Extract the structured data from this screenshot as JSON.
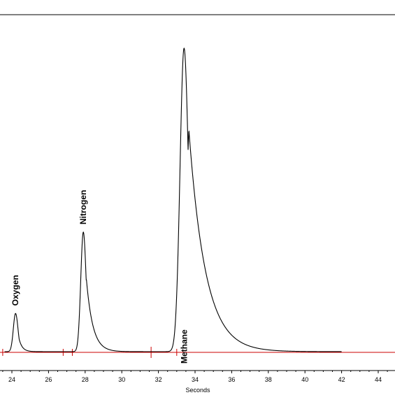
{
  "chart_data": {
    "type": "line",
    "title": "",
    "xlabel": "Seconds",
    "ylabel": "",
    "xlim": [
      23.5,
      45
    ],
    "ylim": [
      0,
      1
    ],
    "x_ticks": [
      24,
      26,
      28,
      30,
      32,
      34,
      36,
      38,
      40,
      42,
      44
    ],
    "x_tick_labels": [
      "24",
      "26",
      "28",
      "30",
      "32",
      "34",
      "36",
      "38",
      "40",
      "42",
      "44"
    ],
    "grid": false,
    "colors": {
      "trace": "#000000",
      "baseline": "#cc0000",
      "axis": "#000000"
    },
    "series": [
      {
        "peaks": [
          {
            "name": "Oxygen",
            "center": 24.2,
            "height": 0.126,
            "width_left": 0.12,
            "width_right": 0.18
          },
          {
            "name": "Nitrogen",
            "center": 27.9,
            "height": 0.394,
            "width_left": 0.14,
            "width_right": 0.35
          },
          {
            "name": "Methane",
            "center": 33.4,
            "height": 1.0,
            "width_left": 0.22,
            "width_right": 0.9
          }
        ],
        "x_start": 23.6,
        "x_end": 42.0
      }
    ],
    "peak_labels": [
      {
        "text": "Oxygen",
        "x": 24.2
      },
      {
        "text": "Nitrogen",
        "x": 27.9
      },
      {
        "text": "Methane",
        "x": 33.4
      }
    ],
    "baseline_markers": [
      23.5,
      26.8,
      27.3,
      31.6,
      33.0
    ]
  }
}
